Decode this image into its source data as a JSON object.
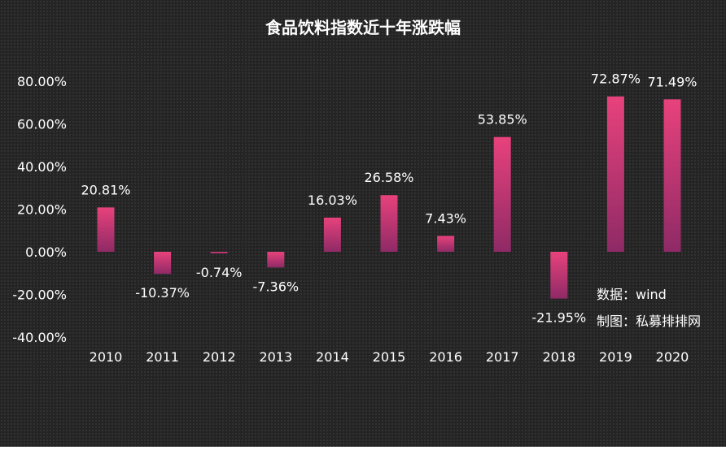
{
  "chart_data": {
    "type": "bar",
    "title": "食品饮料指数近十年涨跌幅",
    "categories": [
      "2010",
      "2011",
      "2012",
      "2013",
      "2014",
      "2015",
      "2016",
      "2017",
      "2018",
      "2019",
      "2020"
    ],
    "values": [
      20.81,
      -10.37,
      -0.74,
      -7.36,
      16.03,
      26.58,
      7.43,
      53.85,
      -21.95,
      72.87,
      71.49
    ],
    "data_labels": [
      "20.81%",
      "-10.37%",
      "-0.74%",
      "-7.36%",
      "16.03%",
      "26.58%",
      "7.43%",
      "53.85%",
      "-21.95%",
      "72.87%",
      "71.49%"
    ],
    "ylim": [
      -40,
      80
    ],
    "yticks": [
      80,
      60,
      40,
      20,
      0,
      -20,
      -40
    ],
    "ytick_labels": [
      "80.00%",
      "60.00%",
      "40.00%",
      "20.00%",
      "0.00%",
      "-20.00%",
      "-40.00%"
    ],
    "xlabel": "",
    "ylabel": "",
    "grid": false,
    "legend": "none",
    "colors": {
      "bar_top": "#e8427c",
      "bar_bottom": "#8e2a66",
      "text": "#ffffff",
      "background": "#242424"
    }
  },
  "annotations": {
    "source": "数据：wind",
    "author": "制图：私募排排网"
  }
}
